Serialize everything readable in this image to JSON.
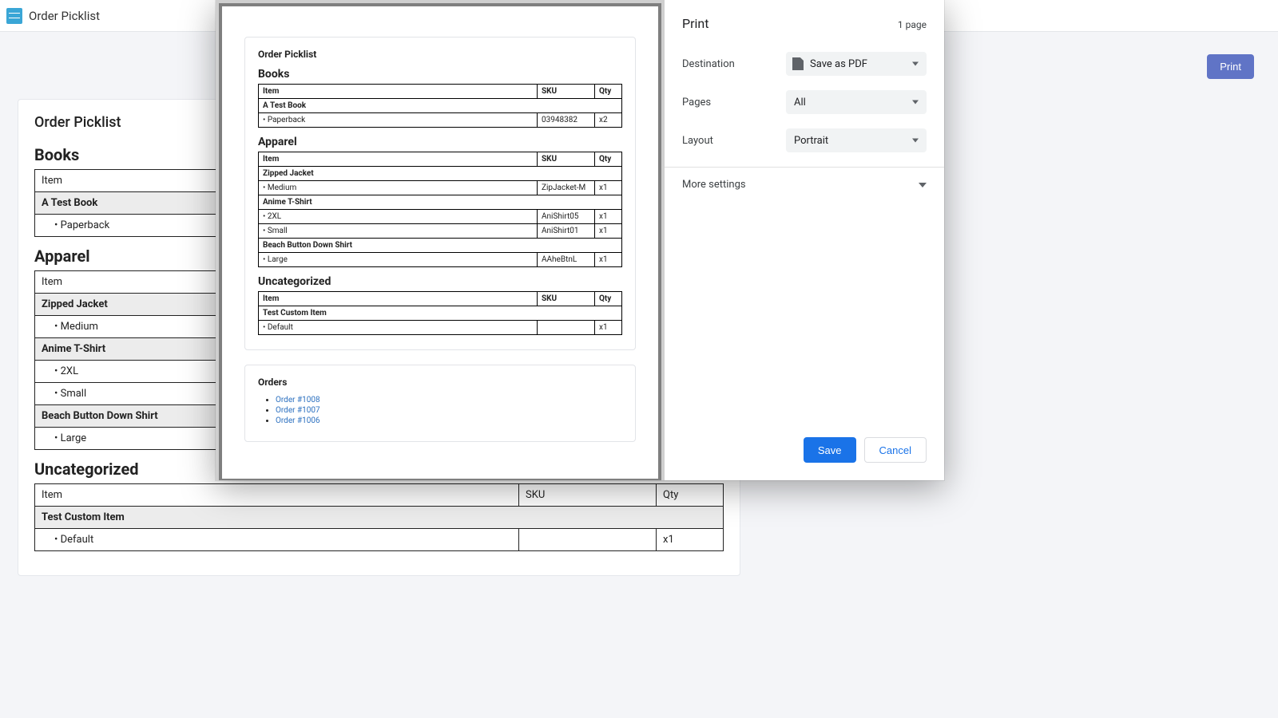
{
  "header": {
    "title": "Order Picklist"
  },
  "toolbar": {
    "print": "Print"
  },
  "page": {
    "title": "Order Picklist",
    "columns": {
      "item": "Item",
      "sku": "SKU",
      "qty": "Qty"
    },
    "sections": [
      {
        "title": "Books",
        "products": [
          {
            "name": "A Test Book",
            "variants": [
              {
                "label": "Paperback",
                "sku": "03948382",
                "qty": "x2"
              }
            ]
          }
        ]
      },
      {
        "title": "Apparel",
        "products": [
          {
            "name": "Zipped Jacket",
            "variants": [
              {
                "label": "Medium",
                "sku": "ZipJacket-M",
                "qty": "x1"
              }
            ]
          },
          {
            "name": "Anime T-Shirt",
            "variants": [
              {
                "label": "2XL",
                "sku": "AniShirt05",
                "qty": "x1"
              },
              {
                "label": "Small",
                "sku": "AniShirt01",
                "qty": "x1"
              }
            ]
          },
          {
            "name": "Beach Button Down Shirt",
            "variants": [
              {
                "label": "Large",
                "sku": "AAheBtnL",
                "qty": "x1"
              }
            ]
          }
        ]
      },
      {
        "title": "Uncategorized",
        "products": [
          {
            "name": "Test Custom Item",
            "variants": [
              {
                "label": "Default",
                "sku": "",
                "qty": "x1"
              }
            ]
          }
        ]
      }
    ],
    "orders": {
      "title": "Orders",
      "items": [
        "Order #1008",
        "Order #1007",
        "Order #1006"
      ]
    }
  },
  "dialog": {
    "title": "Print",
    "pageCount": "1 page",
    "destination": {
      "label": "Destination",
      "value": "Save as PDF"
    },
    "pages": {
      "label": "Pages",
      "value": "All"
    },
    "layout": {
      "label": "Layout",
      "value": "Portrait"
    },
    "more": "More settings",
    "save": "Save",
    "cancel": "Cancel"
  }
}
